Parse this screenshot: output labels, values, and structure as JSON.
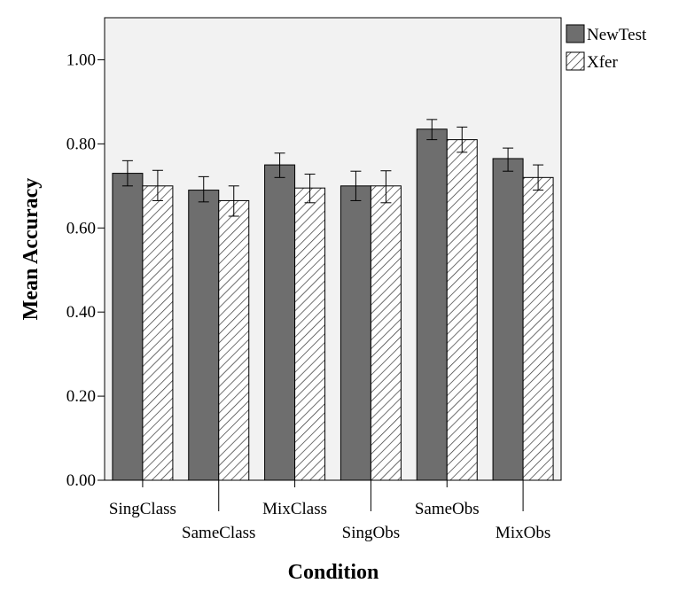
{
  "chart_data": {
    "type": "bar",
    "xlabel": "Condition",
    "ylabel": "Mean Accuracy",
    "ylim": [
      0,
      1.1
    ],
    "yticks": [
      "0.00",
      "0.20",
      "0.40",
      "0.60",
      "0.80",
      "1.00"
    ],
    "categories": [
      "SingClass",
      "SameClass",
      "MixClass",
      "SingObs",
      "SameObs",
      "MixObs"
    ],
    "series": [
      {
        "name": "NewTest",
        "color": "#6e6e6e",
        "pattern": "solid",
        "values": [
          0.73,
          0.69,
          0.75,
          0.7,
          0.835,
          0.765
        ],
        "err_low": [
          0.7,
          0.662,
          0.72,
          0.665,
          0.81,
          0.735
        ],
        "err_high": [
          0.76,
          0.722,
          0.778,
          0.735,
          0.858,
          0.79
        ]
      },
      {
        "name": "Xfer",
        "color": "#ffffff",
        "pattern": "hatched",
        "values": [
          0.7,
          0.665,
          0.695,
          0.7,
          0.81,
          0.72
        ],
        "err_low": [
          0.665,
          0.628,
          0.66,
          0.66,
          0.78,
          0.69
        ],
        "err_high": [
          0.737,
          0.7,
          0.728,
          0.736,
          0.84,
          0.75
        ]
      }
    ],
    "legend_position": "top-right",
    "grid": false
  }
}
